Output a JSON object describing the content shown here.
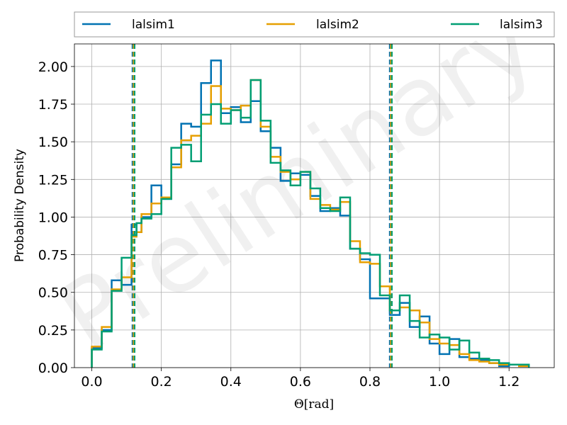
{
  "chart_data": {
    "type": "histogram",
    "xlabel": "Θ[rad]",
    "ylabel": "Probability Density",
    "watermark": "Preliminary",
    "xlim": [
      -0.05,
      1.33
    ],
    "ylim": [
      0.0,
      2.15
    ],
    "xticks": [
      0.0,
      0.2,
      0.4,
      0.6,
      0.8,
      1.0,
      1.2
    ],
    "xtick_labels": [
      "0.0",
      "0.2",
      "0.4",
      "0.6",
      "0.8",
      "1.0",
      "1.2"
    ],
    "yticks": [
      0.0,
      0.25,
      0.5,
      0.75,
      1.0,
      1.25,
      1.5,
      1.75,
      2.0
    ],
    "ytick_labels": [
      "0.00",
      "0.25",
      "0.50",
      "0.75",
      "1.00",
      "1.25",
      "1.50",
      "1.75",
      "2.00"
    ],
    "grid": true,
    "legend_position": "top, above plot",
    "bin_edges": [
      0.0,
      0.0286,
      0.0571,
      0.0857,
      0.1143,
      0.1286,
      0.1429,
      0.1714,
      0.2,
      0.2286,
      0.2571,
      0.2857,
      0.3143,
      0.3429,
      0.3714,
      0.4,
      0.4286,
      0.4571,
      0.4857,
      0.5143,
      0.5429,
      0.5714,
      0.6,
      0.6286,
      0.6571,
      0.6857,
      0.7143,
      0.7429,
      0.7714,
      0.8,
      0.8286,
      0.8571,
      0.8857,
      0.9143,
      0.9429,
      0.9714,
      1.0,
      1.0286,
      1.0571,
      1.0857,
      1.1143,
      1.1429,
      1.1714,
      1.2,
      1.2286,
      1.2571
    ],
    "series": [
      {
        "name": "lalsim1",
        "color": "#0072b2",
        "values": [
          0.13,
          0.25,
          0.58,
          0.55,
          0.95,
          0.9,
          1.0,
          1.21,
          1.12,
          1.35,
          1.62,
          1.6,
          1.89,
          2.04,
          1.69,
          1.73,
          1.63,
          1.77,
          1.57,
          1.46,
          1.24,
          1.29,
          1.28,
          1.14,
          1.04,
          1.06,
          1.01,
          0.79,
          0.72,
          0.46,
          0.46,
          0.35,
          0.43,
          0.27,
          0.34,
          0.16,
          0.09,
          0.19,
          0.07,
          0.06,
          0.05,
          0.03,
          0.01,
          0.02,
          0.01
        ],
        "credible_interval": [
          0.12,
          0.86
        ]
      },
      {
        "name": "lalsim2",
        "color": "#e69f00",
        "values": [
          0.14,
          0.27,
          0.52,
          0.6,
          0.87,
          0.9,
          1.02,
          1.09,
          1.13,
          1.33,
          1.51,
          1.54,
          1.62,
          1.87,
          1.72,
          1.71,
          1.74,
          1.91,
          1.6,
          1.4,
          1.3,
          1.25,
          1.3,
          1.12,
          1.08,
          1.05,
          1.1,
          0.84,
          0.7,
          0.69,
          0.54,
          0.38,
          0.4,
          0.38,
          0.3,
          0.19,
          0.16,
          0.15,
          0.09,
          0.05,
          0.04,
          0.03,
          0.02,
          0.02,
          0.01
        ],
        "credible_interval": [
          0.12,
          0.86
        ]
      },
      {
        "name": "lalsim3",
        "color": "#009e73",
        "values": [
          0.12,
          0.24,
          0.51,
          0.73,
          0.88,
          0.96,
          0.99,
          1.02,
          1.12,
          1.46,
          1.48,
          1.37,
          1.68,
          1.75,
          1.62,
          1.71,
          1.66,
          1.91,
          1.64,
          1.36,
          1.31,
          1.21,
          1.3,
          1.19,
          1.06,
          1.04,
          1.13,
          0.79,
          0.76,
          0.75,
          0.48,
          0.38,
          0.48,
          0.31,
          0.2,
          0.22,
          0.2,
          0.12,
          0.18,
          0.1,
          0.06,
          0.05,
          0.03,
          0.02,
          0.02
        ],
        "credible_interval": [
          0.12,
          0.86
        ]
      }
    ]
  }
}
